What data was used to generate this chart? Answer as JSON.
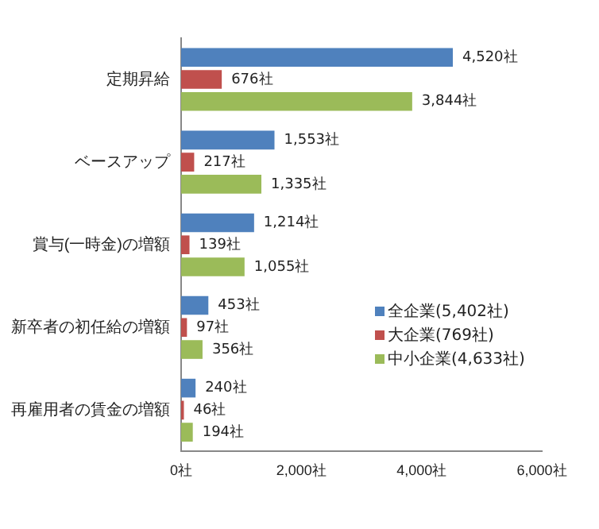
{
  "chart_data": {
    "type": "bar",
    "orientation": "horizontal",
    "categories": [
      "定期昇給",
      "ベースアップ",
      "賞与(一時金)の増額",
      "新卒者の初任給の増額",
      "再雇用者の賃金の増額"
    ],
    "series": [
      {
        "name": "全企業(5,402社)",
        "color": "#4f81bd",
        "values": [
          4520,
          1553,
          1214,
          453,
          240
        ],
        "value_labels": [
          "4,520社",
          "1,553社",
          "1,214社",
          "453社",
          "240社"
        ]
      },
      {
        "name": "大企業(769社)",
        "color": "#c0504d",
        "values": [
          676,
          217,
          139,
          97,
          46
        ],
        "value_labels": [
          "676社",
          "217社",
          "139社",
          "97社",
          "46社"
        ]
      },
      {
        "name": "中小企業(4,633社)",
        "color": "#9bbb59",
        "values": [
          3844,
          1335,
          1055,
          356,
          194
        ],
        "value_labels": [
          "3,844社",
          "1,335社",
          "1,055社",
          "356社",
          "194社"
        ]
      }
    ],
    "xlim": [
      0,
      6000
    ],
    "xticks": [
      {
        "value": 0,
        "label": "0社"
      },
      {
        "value": 2000,
        "label": "2,000社"
      },
      {
        "value": 4000,
        "label": "4,000社"
      },
      {
        "value": 6000,
        "label": "6,000社"
      }
    ],
    "grid": false,
    "legend": "bottom right"
  }
}
